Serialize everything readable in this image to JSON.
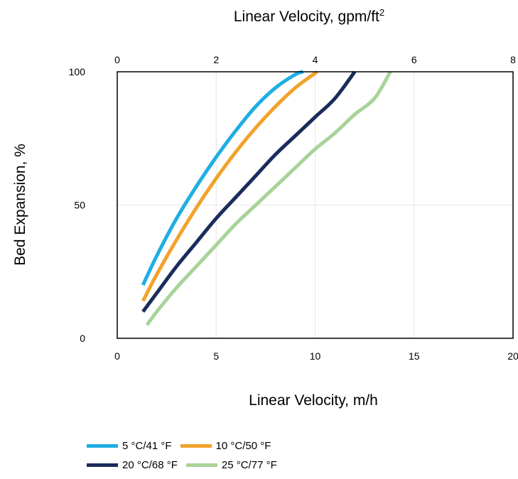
{
  "chart_data": {
    "type": "line",
    "title": "",
    "xlabel": "Linear Velocity, m/h",
    "x2label_text": "Linear Velocity, gpm/ft",
    "x2label_sup": "2",
    "ylabel": "Bed Expansion, %",
    "xlim": [
      0,
      20
    ],
    "x2lim": [
      0,
      8
    ],
    "ylim": [
      0,
      100
    ],
    "x_ticks": [
      "0",
      "5",
      "10",
      "15",
      "20"
    ],
    "x2_ticks": [
      "0",
      "2",
      "4",
      "6",
      "8"
    ],
    "y_ticks": [
      "0",
      "50",
      "100"
    ],
    "grid": true,
    "legend_position": "bottom",
    "series": [
      {
        "name": "5 °C/41 °F",
        "color": "#1FAEE3",
        "points": [
          [
            1.3,
            20
          ],
          [
            2,
            31
          ],
          [
            3,
            45
          ],
          [
            4,
            57
          ],
          [
            5,
            68
          ],
          [
            6,
            78
          ],
          [
            7,
            87
          ],
          [
            8,
            94
          ],
          [
            9,
            99
          ],
          [
            9.4,
            100
          ]
        ]
      },
      {
        "name": "10 °C/50 °F",
        "color": "#F2A22C",
        "points": [
          [
            1.3,
            14
          ],
          [
            2,
            24
          ],
          [
            3,
            37
          ],
          [
            4,
            49
          ],
          [
            5,
            60
          ],
          [
            6,
            70
          ],
          [
            7,
            79
          ],
          [
            8,
            87
          ],
          [
            9,
            94
          ],
          [
            10.1,
            100
          ]
        ]
      },
      {
        "name": "20 °C/68 °F",
        "color": "#1B2C5C",
        "points": [
          [
            1.3,
            10
          ],
          [
            2,
            17
          ],
          [
            3,
            27
          ],
          [
            4,
            36
          ],
          [
            5,
            45
          ],
          [
            6,
            53
          ],
          [
            7,
            61
          ],
          [
            8,
            69
          ],
          [
            9,
            76
          ],
          [
            10,
            83
          ],
          [
            11,
            90
          ],
          [
            12,
            100
          ]
        ]
      },
      {
        "name": "25 °C/77 °F",
        "color": "#A8D399",
        "points": [
          [
            1.5,
            5
          ],
          [
            2,
            10
          ],
          [
            3,
            19
          ],
          [
            4,
            27
          ],
          [
            5,
            35
          ],
          [
            6,
            43
          ],
          [
            7,
            50
          ],
          [
            8,
            57
          ],
          [
            9,
            64
          ],
          [
            10,
            71
          ],
          [
            11,
            77
          ],
          [
            12,
            84
          ],
          [
            13,
            90
          ],
          [
            13.8,
            100
          ]
        ]
      }
    ]
  }
}
